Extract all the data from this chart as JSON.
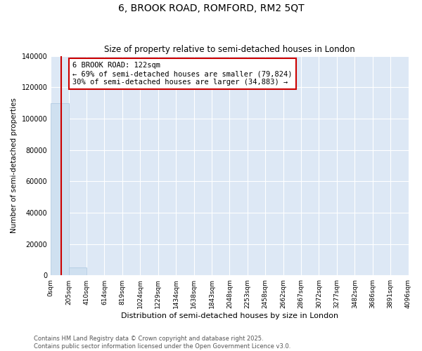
{
  "title": "6, BROOK ROAD, ROMFORD, RM2 5QT",
  "subtitle": "Size of property relative to semi-detached houses in London",
  "xlabel": "Distribution of semi-detached houses by size in London",
  "ylabel": "Number of semi-detached properties",
  "property_size": 122,
  "annotation_text_line1": "6 BROOK ROAD: 122sqm",
  "annotation_text_line2": "← 69% of semi-detached houses are smaller (79,824)",
  "annotation_text_line3": "30% of semi-detached houses are larger (34,883) →",
  "bar_color": "#cfe0f0",
  "bar_edge_color": "#aac5e0",
  "vline_color": "#cc0000",
  "annotation_box_color": "#cc0000",
  "background_color": "#dde8f5",
  "ylim": [
    0,
    140000
  ],
  "yticks": [
    0,
    20000,
    40000,
    60000,
    80000,
    100000,
    120000,
    140000
  ],
  "bin_edges": [
    0,
    205,
    410,
    614,
    819,
    1024,
    1229,
    1434,
    1638,
    1843,
    2048,
    2253,
    2458,
    2662,
    2867,
    3072,
    3277,
    3482,
    3686,
    3891,
    4096
  ],
  "bin_labels": [
    "0sqm",
    "205sqm",
    "410sqm",
    "614sqm",
    "819sqm",
    "1024sqm",
    "1229sqm",
    "1434sqm",
    "1638sqm",
    "1843sqm",
    "2048sqm",
    "2253sqm",
    "2458sqm",
    "2662sqm",
    "2867sqm",
    "3072sqm",
    "3277sqm",
    "3482sqm",
    "3686sqm",
    "3891sqm",
    "4096sqm"
  ],
  "bar_heights": [
    110000,
    5000,
    200,
    100,
    50,
    30,
    20,
    15,
    10,
    8,
    6,
    5,
    4,
    3,
    3,
    2,
    2,
    1,
    1,
    1
  ],
  "footnote_line1": "Contains HM Land Registry data © Crown copyright and database right 2025.",
  "footnote_line2": "Contains public sector information licensed under the Open Government Licence v3.0."
}
